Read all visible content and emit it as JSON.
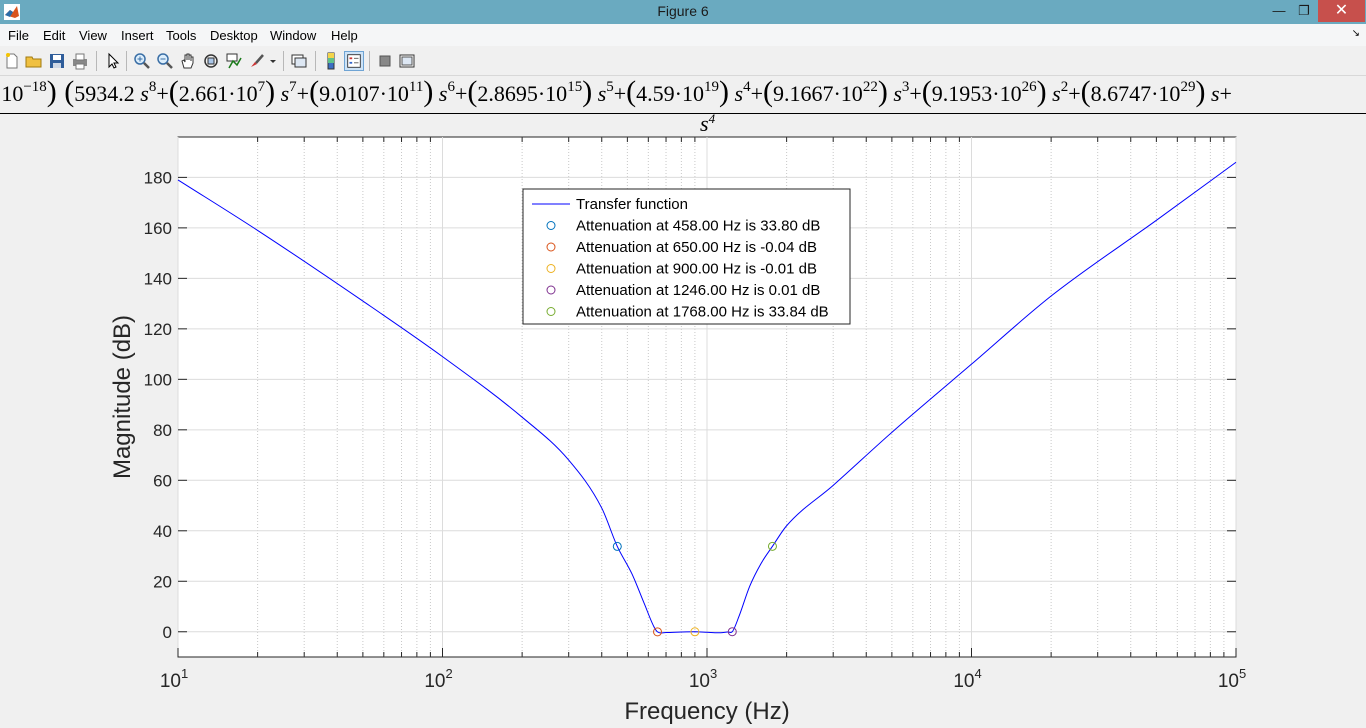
{
  "window": {
    "title": "Figure 6"
  },
  "menu": {
    "items": [
      "File",
      "Edit",
      "View",
      "Insert",
      "Tools",
      "Desktop",
      "Window",
      "Help"
    ]
  },
  "toolbar": {
    "icons": [
      "new-figure-icon",
      "open-file-icon",
      "save-icon",
      "print-icon",
      "edit-plot-arrow-icon",
      "zoom-in-icon",
      "zoom-out-icon",
      "pan-hand-icon",
      "rotate-3d-icon",
      "data-cursor-icon",
      "brush-icon",
      "brush-dropdown-icon",
      "link-plot-icon",
      "insert-colorbar-icon",
      "insert-legend-icon",
      "hide-plot-tools-icon",
      "show-plot-tools-icon"
    ]
  },
  "equation": {
    "left_fragment": "·10",
    "left_exp": "−18",
    "terms": [
      {
        "coef": "5934.2",
        "base": "",
        "exp": "",
        "var_exp": "8",
        "first": true
      },
      {
        "coef": "2.661·10",
        "exp": "7",
        "var_exp": "7"
      },
      {
        "coef": "9.0107·10",
        "exp": "11",
        "var_exp": "6"
      },
      {
        "coef": "2.8695·10",
        "exp": "15",
        "var_exp": "5"
      },
      {
        "coef": "4.59·10",
        "exp": "19",
        "var_exp": "4"
      },
      {
        "coef": "9.1667·10",
        "exp": "22",
        "var_exp": "3"
      },
      {
        "coef": "9.1953·10",
        "exp": "26",
        "var_exp": "2"
      },
      {
        "coef": "8.6747·10",
        "exp": "29",
        "var_exp": ""
      }
    ],
    "denominator_base": "s",
    "denominator_exp": "4"
  },
  "chart_data": {
    "type": "line",
    "xscale": "log",
    "xlim": [
      10,
      100000
    ],
    "ylim": [
      -10,
      196
    ],
    "xlabel": "Frequency (Hz)",
    "ylabel": "Magnitude (dB)",
    "grid": true,
    "xticks": [
      10,
      100,
      1000,
      10000,
      100000
    ],
    "xtick_labels": [
      [
        "10",
        "1"
      ],
      [
        "10",
        "2"
      ],
      [
        "10",
        "3"
      ],
      [
        "10",
        "4"
      ],
      [
        "10",
        "5"
      ]
    ],
    "yticks": [
      0,
      20,
      40,
      60,
      80,
      100,
      120,
      140,
      160,
      180
    ],
    "legend_position": "top-center",
    "series": [
      {
        "name": "Transfer function",
        "color": "#0000ff",
        "points": [
          [
            10,
            179
          ],
          [
            20,
            159
          ],
          [
            50,
            131
          ],
          [
            100,
            109
          ],
          [
            200,
            85
          ],
          [
            300,
            68
          ],
          [
            400,
            49
          ],
          [
            458,
            33.8
          ],
          [
            520,
            23
          ],
          [
            580,
            11
          ],
          [
            630,
            2
          ],
          [
            650,
            -0.04
          ],
          [
            700,
            -0.3
          ],
          [
            800,
            -0.1
          ],
          [
            900,
            -0.01
          ],
          [
            1000,
            -0.2
          ],
          [
            1100,
            -0.4
          ],
          [
            1200,
            -0.1
          ],
          [
            1246,
            0.01
          ],
          [
            1320,
            6
          ],
          [
            1450,
            18
          ],
          [
            1600,
            27
          ],
          [
            1768,
            33.84
          ],
          [
            2000,
            42
          ],
          [
            3000,
            58
          ],
          [
            5000,
            79
          ],
          [
            10000,
            106
          ],
          [
            20000,
            133
          ],
          [
            50000,
            163
          ],
          [
            100000,
            186
          ]
        ]
      }
    ],
    "markers": [
      {
        "label": "Attenuation at 458.00 Hz is 33.80 dB",
        "x": 458,
        "y": 33.8,
        "color": "#0072bd"
      },
      {
        "label": "Attenuation at 650.00 Hz is -0.04 dB",
        "x": 650,
        "y": -0.04,
        "color": "#d95319"
      },
      {
        "label": "Attenuation at 900.00 Hz is -0.01 dB",
        "x": 900,
        "y": -0.01,
        "color": "#edb120"
      },
      {
        "label": "Attenuation at 1246.00 Hz is 0.01 dB",
        "x": 1246,
        "y": 0.01,
        "color": "#7e2f8e"
      },
      {
        "label": "Attenuation at 1768.00 Hz is 33.84 dB",
        "x": 1768,
        "y": 33.84,
        "color": "#77ac30"
      }
    ]
  }
}
